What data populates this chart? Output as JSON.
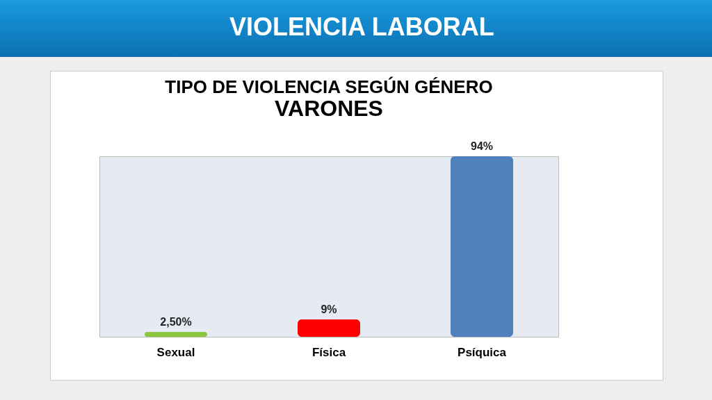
{
  "chart_data": {
    "type": "bar",
    "title": "TIPO DE VIOLENCIA SEGÚN GÉNERO",
    "subtitle": "VARONES",
    "annotations": [
      "VIOLENCIA LABORAL"
    ],
    "categories": [
      "Sexual",
      "Física",
      "Psíquica"
    ],
    "values": [
      2.5,
      9,
      94
    ],
    "colors": [
      "#8cc63f",
      "#ff0000",
      "#4f81bd"
    ],
    "value_labels": [
      "2,50%",
      "9%",
      "94%"
    ],
    "grid": false
  }
}
